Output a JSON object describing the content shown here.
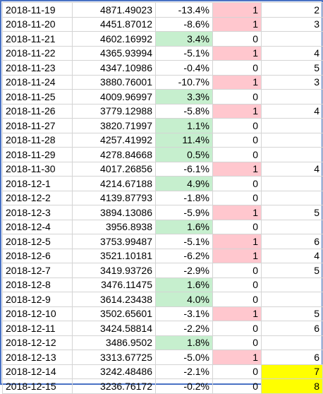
{
  "colors": {
    "positive_fill": "#c6efce",
    "flag_fill": "#ffc7ce",
    "highlight_fill": "#ffff00",
    "frame_border": "#4a72c4",
    "gridline": "#d4d4d4"
  },
  "rows": [
    {
      "date": "2018-11-19",
      "price": "4871.49023",
      "change": "-13.4%",
      "flag": "1",
      "streak": "2",
      "change_positive": false,
      "highlight": false
    },
    {
      "date": "2018-11-20",
      "price": "4451.87012",
      "change": "-8.6%",
      "flag": "1",
      "streak": "3",
      "change_positive": false,
      "highlight": false
    },
    {
      "date": "2018-11-21",
      "price": "4602.16992",
      "change": "3.4%",
      "flag": "0",
      "streak": "",
      "change_positive": true,
      "highlight": false
    },
    {
      "date": "2018-11-22",
      "price": "4365.93994",
      "change": "-5.1%",
      "flag": "1",
      "streak": "4",
      "change_positive": false,
      "highlight": false
    },
    {
      "date": "2018-11-23",
      "price": "4347.10986",
      "change": "-0.4%",
      "flag": "0",
      "streak": "5",
      "change_positive": false,
      "highlight": false
    },
    {
      "date": "2018-11-24",
      "price": "3880.76001",
      "change": "-10.7%",
      "flag": "1",
      "streak": "3",
      "change_positive": false,
      "highlight": false
    },
    {
      "date": "2018-11-25",
      "price": "4009.96997",
      "change": "3.3%",
      "flag": "0",
      "streak": "",
      "change_positive": true,
      "highlight": false
    },
    {
      "date": "2018-11-26",
      "price": "3779.12988",
      "change": "-5.8%",
      "flag": "1",
      "streak": "4",
      "change_positive": false,
      "highlight": false
    },
    {
      "date": "2018-11-27",
      "price": "3820.71997",
      "change": "1.1%",
      "flag": "0",
      "streak": "",
      "change_positive": true,
      "highlight": false
    },
    {
      "date": "2018-11-28",
      "price": "4257.41992",
      "change": "11.4%",
      "flag": "0",
      "streak": "",
      "change_positive": true,
      "highlight": false
    },
    {
      "date": "2018-11-29",
      "price": "4278.84668",
      "change": "0.5%",
      "flag": "0",
      "streak": "",
      "change_positive": true,
      "highlight": false
    },
    {
      "date": "2018-11-30",
      "price": "4017.26856",
      "change": "-6.1%",
      "flag": "1",
      "streak": "4",
      "change_positive": false,
      "highlight": false
    },
    {
      "date": "2018-12-1",
      "price": "4214.67188",
      "change": "4.9%",
      "flag": "0",
      "streak": "",
      "change_positive": true,
      "highlight": false
    },
    {
      "date": "2018-12-2",
      "price": "4139.87793",
      "change": "-1.8%",
      "flag": "0",
      "streak": "",
      "change_positive": false,
      "highlight": false
    },
    {
      "date": "2018-12-3",
      "price": "3894.13086",
      "change": "-5.9%",
      "flag": "1",
      "streak": "5",
      "change_positive": false,
      "highlight": false
    },
    {
      "date": "2018-12-4",
      "price": "3956.8938",
      "change": "1.6%",
      "flag": "0",
      "streak": "",
      "change_positive": true,
      "highlight": false
    },
    {
      "date": "2018-12-5",
      "price": "3753.99487",
      "change": "-5.1%",
      "flag": "1",
      "streak": "6",
      "change_positive": false,
      "highlight": false
    },
    {
      "date": "2018-12-6",
      "price": "3521.10181",
      "change": "-6.2%",
      "flag": "1",
      "streak": "4",
      "change_positive": false,
      "highlight": false
    },
    {
      "date": "2018-12-7",
      "price": "3419.93726",
      "change": "-2.9%",
      "flag": "0",
      "streak": "5",
      "change_positive": false,
      "highlight": false
    },
    {
      "date": "2018-12-8",
      "price": "3476.11475",
      "change": "1.6%",
      "flag": "0",
      "streak": "",
      "change_positive": true,
      "highlight": false
    },
    {
      "date": "2018-12-9",
      "price": "3614.23438",
      "change": "4.0%",
      "flag": "0",
      "streak": "",
      "change_positive": true,
      "highlight": false
    },
    {
      "date": "2018-12-10",
      "price": "3502.65601",
      "change": "-3.1%",
      "flag": "1",
      "streak": "5",
      "change_positive": false,
      "highlight": false
    },
    {
      "date": "2018-12-11",
      "price": "3424.58814",
      "change": "-2.2%",
      "flag": "0",
      "streak": "6",
      "change_positive": false,
      "highlight": false
    },
    {
      "date": "2018-12-12",
      "price": "3486.9502",
      "change": "1.8%",
      "flag": "0",
      "streak": "",
      "change_positive": true,
      "highlight": false
    },
    {
      "date": "2018-12-13",
      "price": "3313.67725",
      "change": "-5.0%",
      "flag": "1",
      "streak": "6",
      "change_positive": false,
      "highlight": false
    },
    {
      "date": "2018-12-14",
      "price": "3242.48486",
      "change": "-2.1%",
      "flag": "0",
      "streak": "7",
      "change_positive": false,
      "highlight": true
    },
    {
      "date": "2018-12-15",
      "price": "3236.76172",
      "change": "-0.2%",
      "flag": "0",
      "streak": "8",
      "change_positive": false,
      "highlight": true
    }
  ]
}
